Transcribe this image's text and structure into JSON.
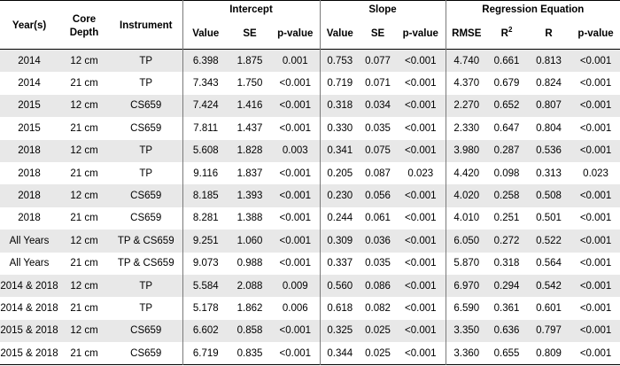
{
  "table": {
    "headers": {
      "year": "Year(s)",
      "core_depth_line1": "Core",
      "core_depth_line2": "Depth",
      "instrument": "Instrument",
      "intercept": "Intercept",
      "slope": "Slope",
      "regression": "Regression Equation",
      "value": "Value",
      "se": "SE",
      "pvalue": "p-value",
      "rmse": "RMSE",
      "r2_base": "R",
      "r2_sup": "2",
      "r": "R"
    },
    "rows": [
      [
        "2014",
        "12 cm",
        "TP",
        "6.398",
        "1.875",
        "0.001",
        "0.753",
        "0.077",
        "<0.001",
        "4.740",
        "0.661",
        "0.813",
        "<0.001"
      ],
      [
        "2014",
        "21 cm",
        "TP",
        "7.343",
        "1.750",
        "<0.001",
        "0.719",
        "0.071",
        "<0.001",
        "4.370",
        "0.679",
        "0.824",
        "<0.001"
      ],
      [
        "2015",
        "12 cm",
        "CS659",
        "7.424",
        "1.416",
        "<0.001",
        "0.318",
        "0.034",
        "<0.001",
        "2.270",
        "0.652",
        "0.807",
        "<0.001"
      ],
      [
        "2015",
        "21 cm",
        "CS659",
        "7.811",
        "1.437",
        "<0.001",
        "0.330",
        "0.035",
        "<0.001",
        "2.330",
        "0.647",
        "0.804",
        "<0.001"
      ],
      [
        "2018",
        "12 cm",
        "TP",
        "5.608",
        "1.828",
        "0.003",
        "0.341",
        "0.075",
        "<0.001",
        "3.980",
        "0.287",
        "0.536",
        "<0.001"
      ],
      [
        "2018",
        "21 cm",
        "TP",
        "9.116",
        "1.837",
        "<0.001",
        "0.205",
        "0.087",
        "0.023",
        "4.420",
        "0.098",
        "0.313",
        "0.023"
      ],
      [
        "2018",
        "12 cm",
        "CS659",
        "8.185",
        "1.393",
        "<0.001",
        "0.230",
        "0.056",
        "<0.001",
        "4.020",
        "0.258",
        "0.508",
        "<0.001"
      ],
      [
        "2018",
        "21 cm",
        "CS659",
        "8.281",
        "1.388",
        "<0.001",
        "0.244",
        "0.061",
        "<0.001",
        "4.010",
        "0.251",
        "0.501",
        "<0.001"
      ],
      [
        "All Years",
        "12 cm",
        "TP & CS659",
        "9.251",
        "1.060",
        "<0.001",
        "0.309",
        "0.036",
        "<0.001",
        "6.050",
        "0.272",
        "0.522",
        "<0.001"
      ],
      [
        "All Years",
        "21 cm",
        "TP & CS659",
        "9.073",
        "0.988",
        "<0.001",
        "0.337",
        "0.035",
        "<0.001",
        "5.870",
        "0.318",
        "0.564",
        "<0.001"
      ],
      [
        "2014 & 2018",
        "12 cm",
        "TP",
        "5.584",
        "2.088",
        "0.009",
        "0.560",
        "0.086",
        "<0.001",
        "6.970",
        "0.294",
        "0.542",
        "<0.001"
      ],
      [
        "2014 & 2018",
        "21 cm",
        "TP",
        "5.178",
        "1.862",
        "0.006",
        "0.618",
        "0.082",
        "<0.001",
        "6.590",
        "0.361",
        "0.601",
        "<0.001"
      ],
      [
        "2015 & 2018",
        "12 cm",
        "CS659",
        "6.602",
        "0.858",
        "<0.001",
        "0.325",
        "0.025",
        "<0.001",
        "3.350",
        "0.636",
        "0.797",
        "<0.001"
      ],
      [
        "2015 & 2018",
        "21 cm",
        "CS659",
        "6.719",
        "0.835",
        "<0.001",
        "0.344",
        "0.025",
        "<0.001",
        "3.360",
        "0.655",
        "0.809",
        "<0.001"
      ]
    ]
  }
}
